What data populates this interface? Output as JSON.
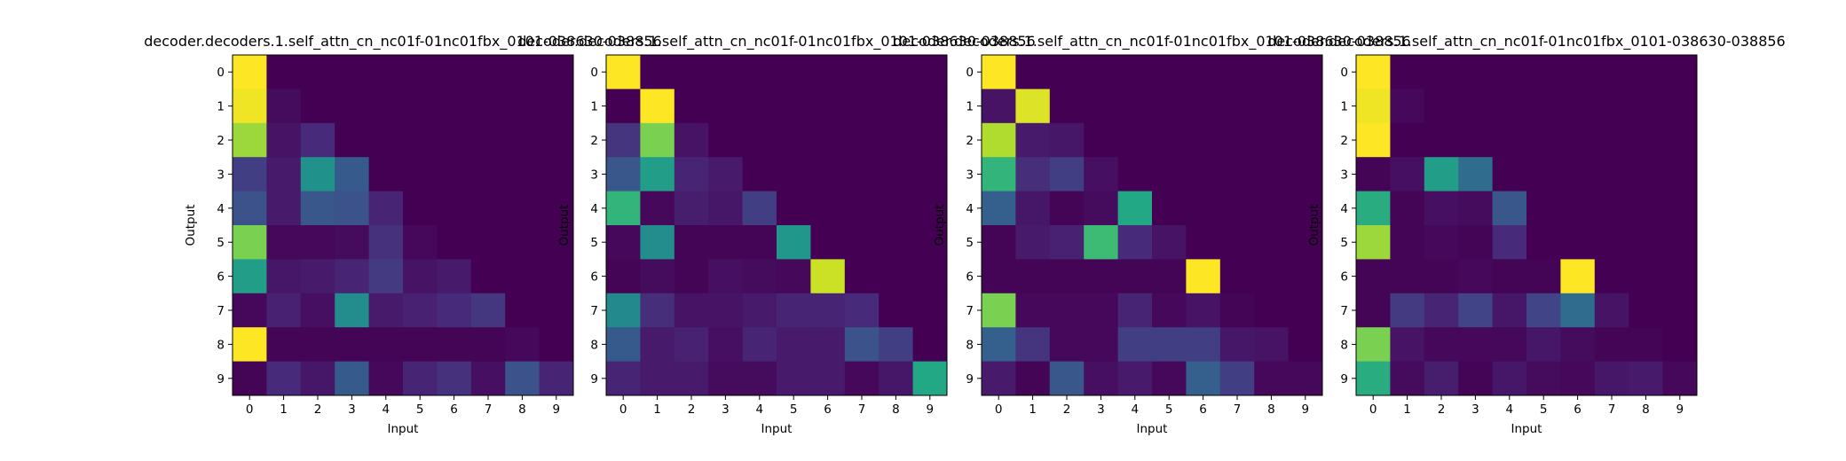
{
  "chart_data": [
    {
      "type": "heatmap",
      "title": "decoder.decoders.1.self_attn_cn_nc01f-01nc01fbx_0101-038630-038856",
      "xlabel": "Input",
      "ylabel": "Output",
      "x_ticks": [
        "0",
        "1",
        "2",
        "3",
        "4",
        "5",
        "6",
        "7",
        "8",
        "9"
      ],
      "y_ticks": [
        "0",
        "1",
        "2",
        "3",
        "4",
        "5",
        "6",
        "7",
        "8",
        "9"
      ],
      "colormap": "viridis",
      "values": [
        [
          1.0,
          0.0,
          0.0,
          0.0,
          0.0,
          0.0,
          0.0,
          0.0,
          0.0,
          0.0
        ],
        [
          0.98,
          0.03,
          0.0,
          0.0,
          0.0,
          0.0,
          0.0,
          0.0,
          0.0,
          0.0
        ],
        [
          0.85,
          0.05,
          0.12,
          0.0,
          0.0,
          0.0,
          0.0,
          0.0,
          0.0,
          0.0
        ],
        [
          0.18,
          0.07,
          0.5,
          0.28,
          0.0,
          0.0,
          0.0,
          0.0,
          0.0,
          0.0
        ],
        [
          0.25,
          0.07,
          0.27,
          0.25,
          0.1,
          0.0,
          0.0,
          0.0,
          0.0,
          0.0
        ],
        [
          0.8,
          0.02,
          0.02,
          0.03,
          0.14,
          0.02,
          0.0,
          0.0,
          0.0,
          0.0
        ],
        [
          0.55,
          0.06,
          0.07,
          0.1,
          0.17,
          0.05,
          0.07,
          0.0,
          0.0,
          0.0
        ],
        [
          0.02,
          0.09,
          0.04,
          0.48,
          0.07,
          0.09,
          0.12,
          0.16,
          0.0,
          0.0
        ],
        [
          1.0,
          0.01,
          0.01,
          0.01,
          0.01,
          0.01,
          0.01,
          0.01,
          0.02,
          0.0
        ],
        [
          0.01,
          0.12,
          0.06,
          0.28,
          0.02,
          0.1,
          0.14,
          0.04,
          0.25,
          0.1
        ]
      ]
    },
    {
      "type": "heatmap",
      "title": "decoder.decoders.1.self_attn_cn_nc01f-01nc01fbx_0101-038630-038856",
      "xlabel": "Input",
      "ylabel": "Output",
      "x_ticks": [
        "0",
        "1",
        "2",
        "3",
        "4",
        "5",
        "6",
        "7",
        "8",
        "9"
      ],
      "y_ticks": [
        "0",
        "1",
        "2",
        "3",
        "4",
        "5",
        "6",
        "7",
        "8",
        "9"
      ],
      "colormap": "viridis",
      "values": [
        [
          1.0,
          0.0,
          0.0,
          0.0,
          0.0,
          0.0,
          0.0,
          0.0,
          0.0,
          0.0
        ],
        [
          0.0,
          1.0,
          0.0,
          0.0,
          0.0,
          0.0,
          0.0,
          0.0,
          0.0,
          0.0
        ],
        [
          0.15,
          0.8,
          0.05,
          0.0,
          0.0,
          0.0,
          0.0,
          0.0,
          0.0,
          0.0
        ],
        [
          0.27,
          0.55,
          0.1,
          0.07,
          0.0,
          0.0,
          0.0,
          0.0,
          0.0,
          0.0
        ],
        [
          0.65,
          0.02,
          0.08,
          0.06,
          0.18,
          0.0,
          0.0,
          0.0,
          0.0,
          0.0
        ],
        [
          0.02,
          0.48,
          0.01,
          0.01,
          0.01,
          0.52,
          0.0,
          0.0,
          0.0,
          0.0
        ],
        [
          0.01,
          0.03,
          0.01,
          0.04,
          0.03,
          0.02,
          0.92,
          0.0,
          0.0,
          0.0
        ],
        [
          0.47,
          0.13,
          0.05,
          0.05,
          0.07,
          0.1,
          0.1,
          0.12,
          0.0,
          0.0
        ],
        [
          0.28,
          0.07,
          0.09,
          0.04,
          0.1,
          0.07,
          0.07,
          0.25,
          0.18,
          0.0
        ],
        [
          0.1,
          0.07,
          0.07,
          0.03,
          0.03,
          0.07,
          0.07,
          0.02,
          0.06,
          0.6
        ]
      ]
    },
    {
      "type": "heatmap",
      "title": "decoder.decoders.1.self_attn_cn_nc01f-01nc01fbx_0101-038630-038856",
      "xlabel": "Input",
      "ylabel": "Output",
      "x_ticks": [
        "0",
        "1",
        "2",
        "3",
        "4",
        "5",
        "6",
        "7",
        "8",
        "9"
      ],
      "y_ticks": [
        "0",
        "1",
        "2",
        "3",
        "4",
        "5",
        "6",
        "7",
        "8",
        "9"
      ],
      "colormap": "viridis",
      "values": [
        [
          1.0,
          0.0,
          0.0,
          0.0,
          0.0,
          0.0,
          0.0,
          0.0,
          0.0,
          0.0
        ],
        [
          0.05,
          0.95,
          0.0,
          0.0,
          0.0,
          0.0,
          0.0,
          0.0,
          0.0,
          0.0
        ],
        [
          0.88,
          0.07,
          0.06,
          0.0,
          0.0,
          0.0,
          0.0,
          0.0,
          0.0,
          0.0
        ],
        [
          0.65,
          0.13,
          0.18,
          0.04,
          0.0,
          0.0,
          0.0,
          0.0,
          0.0,
          0.0
        ],
        [
          0.3,
          0.06,
          0.01,
          0.03,
          0.6,
          0.0,
          0.0,
          0.0,
          0.0,
          0.0
        ],
        [
          0.01,
          0.07,
          0.09,
          0.68,
          0.12,
          0.05,
          0.0,
          0.0,
          0.0,
          0.0
        ],
        [
          0.01,
          0.01,
          0.01,
          0.01,
          0.01,
          0.01,
          1.0,
          0.0,
          0.0,
          0.0
        ],
        [
          0.8,
          0.02,
          0.02,
          0.02,
          0.1,
          0.02,
          0.05,
          0.01,
          0.0,
          0.0
        ],
        [
          0.3,
          0.15,
          0.02,
          0.02,
          0.18,
          0.18,
          0.18,
          0.06,
          0.05,
          0.0
        ],
        [
          0.07,
          0.01,
          0.27,
          0.04,
          0.07,
          0.02,
          0.3,
          0.18,
          0.02,
          0.02
        ]
      ]
    },
    {
      "type": "heatmap",
      "title": "decoder.decoders.1.self_attn_cn_nc01f-01nc01fbx_0101-038630-038856",
      "xlabel": "Input",
      "ylabel": "Output",
      "x_ticks": [
        "0",
        "1",
        "2",
        "3",
        "4",
        "5",
        "6",
        "7",
        "8",
        "9"
      ],
      "y_ticks": [
        "0",
        "1",
        "2",
        "3",
        "4",
        "5",
        "6",
        "7",
        "8",
        "9"
      ],
      "colormap": "viridis",
      "values": [
        [
          1.0,
          0.0,
          0.0,
          0.0,
          0.0,
          0.0,
          0.0,
          0.0,
          0.0,
          0.0
        ],
        [
          0.98,
          0.02,
          0.0,
          0.0,
          0.0,
          0.0,
          0.0,
          0.0,
          0.0,
          0.0
        ],
        [
          1.0,
          0.0,
          0.0,
          0.0,
          0.0,
          0.0,
          0.0,
          0.0,
          0.0,
          0.0
        ],
        [
          0.01,
          0.04,
          0.55,
          0.35,
          0.0,
          0.0,
          0.0,
          0.0,
          0.0,
          0.0
        ],
        [
          0.62,
          0.01,
          0.04,
          0.03,
          0.27,
          0.0,
          0.0,
          0.0,
          0.0,
          0.0
        ],
        [
          0.85,
          0.01,
          0.02,
          0.01,
          0.12,
          0.0,
          0.0,
          0.0,
          0.0,
          0.0
        ],
        [
          0.01,
          0.01,
          0.01,
          0.02,
          0.01,
          0.01,
          1.0,
          0.0,
          0.0,
          0.0
        ],
        [
          0.01,
          0.17,
          0.1,
          0.2,
          0.06,
          0.2,
          0.35,
          0.05,
          0.0,
          0.0
        ],
        [
          0.8,
          0.05,
          0.02,
          0.02,
          0.02,
          0.06,
          0.03,
          0.01,
          0.01,
          0.0
        ],
        [
          0.62,
          0.03,
          0.08,
          0.01,
          0.06,
          0.03,
          0.02,
          0.06,
          0.07,
          0.02
        ]
      ]
    }
  ]
}
